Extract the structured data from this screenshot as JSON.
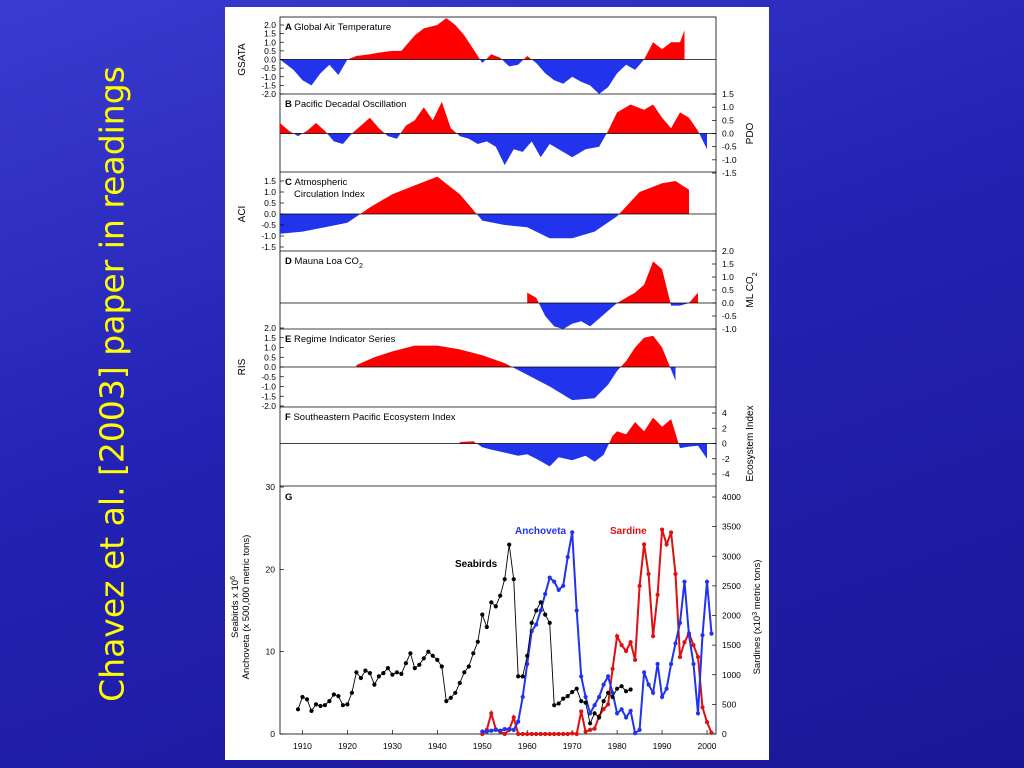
{
  "slide": {
    "title": "Chavez et al. [2003] paper in readings",
    "title_color": "#ffff00"
  },
  "colors": {
    "positive": "#ff0000",
    "negative": "#2233ee",
    "anchoveta": "#2233ee",
    "sardine": "#dd1111",
    "seabirds": "#000000"
  },
  "chart_data": [
    {
      "type": "area",
      "panel": "A",
      "title": "Global Air Temperature",
      "ylabel": "GSATA",
      "y_axis_side": "left",
      "ylim": [
        -2.0,
        2.0
      ],
      "yticks": [
        "2.0",
        "1.5",
        "1.0",
        "0.5",
        "0.0",
        "-0.5",
        "-1.0",
        "-1.5",
        "-2.0"
      ],
      "x": [
        1905,
        1908,
        1910,
        1912,
        1914,
        1916,
        1918,
        1920,
        1922,
        1925,
        1927,
        1930,
        1932,
        1935,
        1937,
        1940,
        1942,
        1944,
        1946,
        1948,
        1950,
        1952,
        1954,
        1956,
        1958,
        1960,
        1962,
        1964,
        1966,
        1968,
        1970,
        1972,
        1974,
        1976,
        1978,
        1980,
        1982,
        1984,
        1986,
        1988,
        1990,
        1992,
        1994,
        1995
      ],
      "y": [
        0.0,
        -0.6,
        -1.2,
        -1.5,
        -0.8,
        -0.3,
        -0.9,
        0.0,
        0.2,
        0.3,
        0.4,
        0.5,
        0.5,
        1.4,
        1.8,
        2.0,
        2.4,
        2.0,
        1.4,
        0.6,
        -0.2,
        0.3,
        0.1,
        -0.4,
        -0.3,
        0.2,
        -0.2,
        -0.8,
        -1.2,
        -1.4,
        -1.0,
        -1.3,
        -1.5,
        -2.0,
        -1.6,
        -0.8,
        -0.3,
        -0.6,
        0.0,
        1.0,
        0.6,
        1.0,
        1.0,
        1.7
      ]
    },
    {
      "type": "area",
      "panel": "B",
      "title": "Pacific Decadal Oscillation",
      "ylabel": "PDO",
      "y_axis_side": "right",
      "ylim": [
        -1.5,
        1.5
      ],
      "yticks": [
        "1.5",
        "1.0",
        "0.5",
        "0.0",
        "-0.5",
        "-1.0",
        "-1.5"
      ],
      "x": [
        1900,
        1903,
        1905,
        1907,
        1909,
        1911,
        1913,
        1915,
        1917,
        1919,
        1921,
        1923,
        1925,
        1927,
        1929,
        1931,
        1933,
        1935,
        1937,
        1939,
        1941,
        1943,
        1945,
        1947,
        1949,
        1951,
        1953,
        1955,
        1957,
        1959,
        1961,
        1963,
        1965,
        1967,
        1970,
        1973,
        1976,
        1978,
        1980,
        1983,
        1986,
        1988,
        1990,
        1992,
        1994,
        1996,
        1998,
        2000
      ],
      "y": [
        0.0,
        0.3,
        0.4,
        0.1,
        -0.1,
        0.1,
        0.4,
        0.1,
        -0.3,
        -0.4,
        0.0,
        0.3,
        0.6,
        0.2,
        -0.1,
        -0.2,
        0.3,
        0.5,
        1.0,
        0.5,
        1.2,
        0.2,
        -0.1,
        -0.2,
        -0.4,
        -0.3,
        -0.5,
        -1.2,
        -0.6,
        -0.7,
        -0.3,
        -0.9,
        -0.4,
        -0.6,
        -0.9,
        -0.6,
        -0.5,
        0.1,
        0.8,
        1.1,
        0.9,
        1.1,
        0.6,
        0.2,
        0.8,
        0.6,
        0.1,
        -0.6
      ]
    },
    {
      "type": "area",
      "panel": "C",
      "title": "Atmospheric Circulation Index",
      "title_lines": [
        "Atmospheric",
        "Circulation Index"
      ],
      "ylabel": "ACI",
      "y_axis_side": "left",
      "ylim": [
        -1.5,
        1.5
      ],
      "yticks": [
        "1.5",
        "1.0",
        "0.5",
        "0.0",
        "-0.5",
        "-1.0",
        "-1.5"
      ],
      "x": [
        1900,
        1905,
        1910,
        1915,
        1920,
        1925,
        1930,
        1935,
        1940,
        1945,
        1950,
        1955,
        1960,
        1965,
        1970,
        1975,
        1980,
        1985,
        1990,
        1993,
        1996
      ],
      "y": [
        -1.3,
        -0.9,
        -0.8,
        -0.6,
        -0.4,
        0.3,
        0.9,
        1.3,
        1.7,
        0.9,
        -0.3,
        -0.5,
        -0.6,
        -1.1,
        -1.1,
        -0.8,
        -0.1,
        1.0,
        1.4,
        1.5,
        1.1
      ]
    },
    {
      "type": "area",
      "panel": "D",
      "title": "Mauna Loa CO2",
      "ylabel": "ML CO2",
      "y_axis_side": "right",
      "ylim": [
        -1.0,
        2.0
      ],
      "yticks": [
        "2.0",
        "1.5",
        "1.0",
        "0.5",
        "0.0",
        "-0.5",
        "-1.0"
      ],
      "x": [
        1960,
        1962,
        1964,
        1966,
        1968,
        1970,
        1972,
        1974,
        1976,
        1978,
        1980,
        1982,
        1984,
        1986,
        1988,
        1990,
        1992,
        1994,
        1996,
        1998
      ],
      "y": [
        0.4,
        0.2,
        -0.5,
        -0.9,
        -1.0,
        -0.8,
        -0.7,
        -0.9,
        -0.6,
        -0.3,
        0.0,
        0.2,
        0.4,
        0.7,
        1.6,
        1.3,
        -0.1,
        -0.1,
        0.0,
        0.4
      ]
    },
    {
      "type": "area",
      "panel": "E",
      "title": "Regime Indicator Series",
      "ylabel": "RIS",
      "y_axis_side": "left",
      "ylim": [
        -2.0,
        2.0
      ],
      "yticks": [
        "2.0",
        "1.5",
        "1.0",
        "0.5",
        "0.0",
        "-0.5",
        "-1.0",
        "-1.5",
        "-2.0"
      ],
      "x": [
        1922,
        1926,
        1930,
        1935,
        1940,
        1945,
        1950,
        1955,
        1960,
        1965,
        1970,
        1975,
        1978,
        1980,
        1982,
        1984,
        1986,
        1988,
        1990,
        1993
      ],
      "y": [
        0.1,
        0.5,
        0.8,
        1.1,
        1.1,
        0.9,
        0.6,
        0.2,
        -0.4,
        -1.0,
        -1.7,
        -1.6,
        -0.9,
        -0.2,
        0.3,
        1.0,
        1.5,
        1.6,
        1.0,
        -0.7
      ]
    },
    {
      "type": "area",
      "panel": "F",
      "title": "Southeastern Pacific Ecosystem Index",
      "ylabel": "Ecosystem Index",
      "y_axis_side": "right",
      "ylim": [
        -4,
        4
      ],
      "yticks": [
        "4",
        "2",
        "0",
        "-2",
        "-4"
      ],
      "x": [
        1945,
        1948,
        1950,
        1952,
        1955,
        1958,
        1960,
        1962,
        1965,
        1967,
        1970,
        1973,
        1975,
        1977,
        1979,
        1980,
        1982,
        1984,
        1986,
        1988,
        1990,
        1992,
        1994,
        1996,
        1998,
        2000
      ],
      "y": [
        0.2,
        0.3,
        -0.5,
        -0.8,
        -1.2,
        -1.6,
        -1.4,
        -2.0,
        -3.0,
        -1.8,
        -2.2,
        -1.6,
        -2.4,
        -1.5,
        1.0,
        1.6,
        1.2,
        2.8,
        1.6,
        3.4,
        2.2,
        3.2,
        -0.6,
        -0.4,
        -0.3,
        -2.0
      ]
    },
    {
      "type": "line",
      "panel": "G",
      "xlim": [
        1905,
        2002
      ],
      "xticks": [
        "1910",
        "1920",
        "1930",
        "1940",
        "1950",
        "1960",
        "1970",
        "1980",
        "1990",
        "2000"
      ],
      "ylabel_left": "Seabirds x 10^6 / Anchoveta (x 500,000 metric tons)",
      "ylabel_left_lines": [
        "Seabirds x 10",
        "Anchoveta (x 500,000 metric tons)"
      ],
      "ylabel_left_superscript": "6",
      "ylim_left": [
        0,
        30
      ],
      "yticks_left": [
        "0",
        "10",
        "20",
        "30"
      ],
      "ylabel_right": "Sardines (x10^3 metric tons)",
      "ylabel_right_parts": [
        "Sardines (x10",
        "3",
        " metric tons)"
      ],
      "ylim_right": [
        0,
        4000
      ],
      "yticks_right": [
        "0",
        "500",
        "1000",
        "1500",
        "2000",
        "2500",
        "3000",
        "3500",
        "4000"
      ],
      "series": [
        {
          "name": "Seabirds",
          "axis": "left",
          "x": [
            1909,
            1910,
            1911,
            1912,
            1913,
            1914,
            1915,
            1916,
            1917,
            1918,
            1919,
            1920,
            1921,
            1922,
            1923,
            1924,
            1925,
            1926,
            1927,
            1928,
            1929,
            1930,
            1931,
            1932,
            1933,
            1934,
            1935,
            1936,
            1937,
            1938,
            1939,
            1940,
            1941,
            1942,
            1943,
            1944,
            1945,
            1946,
            1947,
            1948,
            1949,
            1950,
            1951,
            1952,
            1953,
            1954,
            1955,
            1956,
            1957,
            1958,
            1959,
            1960,
            1961,
            1962,
            1963,
            1964,
            1965,
            1966,
            1967,
            1968,
            1969,
            1970,
            1971,
            1972,
            1973,
            1974,
            1975,
            1976,
            1977,
            1978,
            1979,
            1980,
            1981,
            1982,
            1983
          ],
          "y": [
            3.0,
            4.5,
            4.2,
            2.8,
            3.6,
            3.4,
            3.5,
            4.0,
            4.8,
            4.6,
            3.5,
            3.6,
            5.0,
            7.5,
            6.8,
            7.7,
            7.4,
            6.0,
            7.0,
            7.4,
            8.0,
            7.2,
            7.5,
            7.3,
            8.6,
            9.8,
            8.0,
            8.4,
            9.2,
            10.0,
            9.5,
            9.0,
            8.2,
            4.0,
            4.4,
            5.0,
            6.2,
            7.5,
            8.2,
            9.8,
            11.2,
            14.5,
            13.0,
            16.0,
            15.5,
            16.8,
            18.8,
            23.0,
            18.8,
            7.0,
            7.0,
            9.5,
            13.5,
            15.0,
            16.0,
            14.5,
            13.5,
            3.5,
            3.7,
            4.3,
            4.6,
            5.1,
            5.5,
            4.0,
            3.8,
            1.3,
            2.5,
            2.0,
            4.0,
            5.0,
            4.5,
            5.5,
            5.8,
            5.2,
            5.4
          ]
        },
        {
          "name": "Anchoveta",
          "axis": "left",
          "x": [
            1950,
            1951,
            1952,
            1953,
            1954,
            1955,
            1956,
            1957,
            1958,
            1959,
            1960,
            1961,
            1962,
            1963,
            1964,
            1965,
            1966,
            1967,
            1968,
            1969,
            1970,
            1971,
            1972,
            1973,
            1974,
            1975,
            1976,
            1977,
            1978,
            1979,
            1980,
            1981,
            1982,
            1983,
            1984,
            1985,
            1986,
            1987,
            1988,
            1989,
            1990,
            1991,
            1992,
            1993,
            1994,
            1995,
            1996,
            1997,
            1998,
            1999,
            2000,
            2001
          ],
          "y": [
            0.3,
            0.3,
            0.4,
            0.5,
            0.4,
            0.6,
            0.6,
            0.5,
            1.5,
            4.5,
            8.5,
            12.5,
            13.3,
            15.0,
            17.0,
            19.0,
            18.5,
            17.5,
            18.0,
            21.5,
            24.5,
            15.0,
            7.0,
            4.5,
            2.5,
            3.5,
            4.5,
            6.0,
            7.0,
            5.0,
            2.5,
            3.0,
            2.0,
            2.8,
            0.1,
            0.5,
            7.5,
            6.0,
            5.0,
            8.5,
            4.5,
            5.5,
            8.5,
            11.0,
            13.5,
            18.5,
            12.0,
            8.5,
            2.5,
            12.0,
            18.5,
            12.2
          ]
        },
        {
          "name": "Sardine",
          "axis": "right",
          "x": [
            1950,
            1951,
            1952,
            1953,
            1954,
            1955,
            1956,
            1957,
            1958,
            1959,
            1960,
            1961,
            1962,
            1963,
            1964,
            1965,
            1966,
            1967,
            1968,
            1969,
            1970,
            1971,
            1972,
            1973,
            1974,
            1975,
            1976,
            1977,
            1978,
            1979,
            1980,
            1981,
            1982,
            1983,
            1984,
            1985,
            1986,
            1987,
            1988,
            1989,
            1990,
            1991,
            1992,
            1993,
            1994,
            1995,
            1996,
            1997,
            1998,
            1999,
            2000,
            2001
          ],
          "y": [
            0,
            70,
            350,
            80,
            40,
            0,
            70,
            280,
            0,
            0,
            0,
            0,
            0,
            0,
            0,
            0,
            0,
            0,
            0,
            0,
            10,
            0,
            380,
            40,
            70,
            90,
            300,
            420,
            500,
            1100,
            1650,
            1500,
            1400,
            1550,
            1250,
            2500,
            3200,
            2700,
            1650,
            2350,
            3450,
            3200,
            3400,
            2700,
            1300,
            1550,
            1700,
            1500,
            1300,
            450,
            200,
            20
          ]
        }
      ],
      "annotations": [
        "Seabirds",
        "Anchoveta",
        "Sardine"
      ]
    }
  ]
}
